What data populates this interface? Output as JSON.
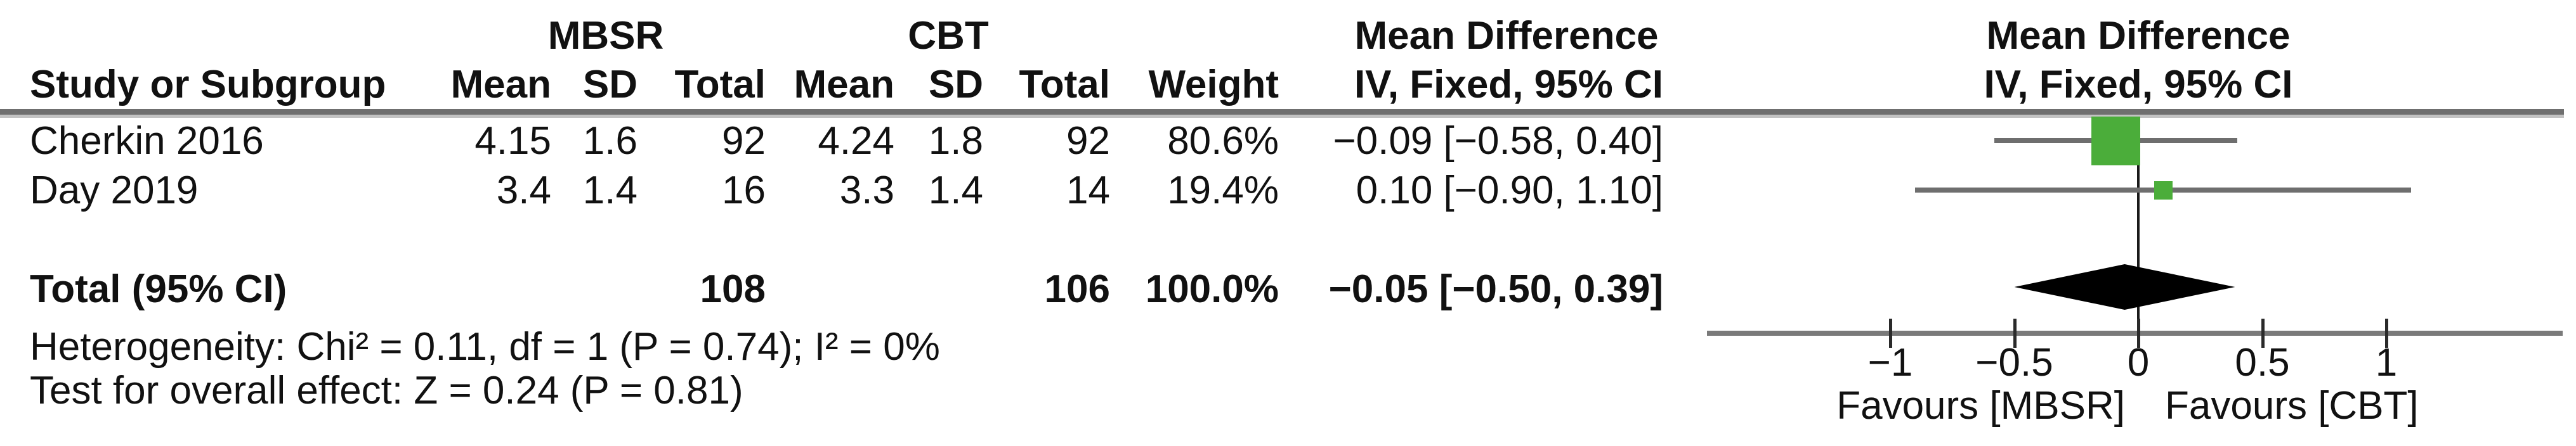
{
  "header": {
    "group1": "MBSR",
    "group2": "CBT",
    "study_col": "Study or Subgroup",
    "mean1": "Mean",
    "sd1": "SD",
    "total1": "Total",
    "mean2": "Mean",
    "sd2": "SD",
    "total2": "Total",
    "weight": "Weight",
    "md_left_line1": "Mean Difference",
    "md_left_line2": "IV, Fixed, 95% CI",
    "md_right_line1": "Mean Difference",
    "md_right_line2": "IV, Fixed, 95% CI"
  },
  "rows": [
    {
      "study": "Cherkin 2016",
      "mean1": "4.15",
      "sd1": "1.6",
      "total1": "92",
      "mean2": "4.24",
      "sd2": "1.8",
      "total2": "92",
      "weight": "80.6%",
      "ci_text": "−0.09 [−0.58, 0.40]"
    },
    {
      "study": "Day 2019",
      "mean1": "3.4",
      "sd1": "1.4",
      "total1": "16",
      "mean2": "3.3",
      "sd2": "1.4",
      "total2": "14",
      "weight": "19.4%",
      "ci_text": "0.10 [−0.90, 1.10]"
    }
  ],
  "total_row": {
    "label": "Total (95% CI)",
    "total1": "108",
    "total2": "106",
    "weight": "100.0%",
    "ci_text": "−0.05 [−0.50, 0.39]"
  },
  "footnotes": {
    "heterogeneity": "Heterogeneity: Chi² = 0.11, df = 1 (P = 0.74); I² = 0%",
    "overall_effect": "Test for overall effect: Z = 0.24 (P = 0.81)"
  },
  "axis_labels": {
    "favours_left": "Favours [MBSR]",
    "favours_right": "Favours [CBT]"
  },
  "colors": {
    "marker_green": "#4bad3a",
    "ci_line_gray": "#6e6e6e",
    "axis_gray": "#7a7a7a",
    "diamond_black": "#000000"
  },
  "chart_data": {
    "type": "forest",
    "effect_measure": "Mean Difference, IV, Fixed, 95% CI",
    "x_ticks": [
      -1,
      -0.5,
      0,
      0.5,
      1
    ],
    "x_tick_labels": [
      "−1",
      "−0.5",
      "0",
      "0.5",
      "1"
    ],
    "xlim": [
      -1.74,
      1.71
    ],
    "studies": [
      {
        "name": "Cherkin 2016",
        "md": -0.09,
        "ci_low": -0.58,
        "ci_high": 0.4,
        "weight_pct": 80.6
      },
      {
        "name": "Day 2019",
        "md": 0.1,
        "ci_low": -0.9,
        "ci_high": 1.1,
        "weight_pct": 19.4
      }
    ],
    "total": {
      "name": "Total (95% CI)",
      "md": -0.05,
      "ci_low": -0.5,
      "ci_high": 0.39,
      "weight_pct": 100.0
    },
    "heterogeneity": {
      "chi2": 0.11,
      "df": 1,
      "p": 0.74,
      "i2_pct": 0
    },
    "overall_effect": {
      "z": 0.24,
      "p": 0.81
    }
  }
}
